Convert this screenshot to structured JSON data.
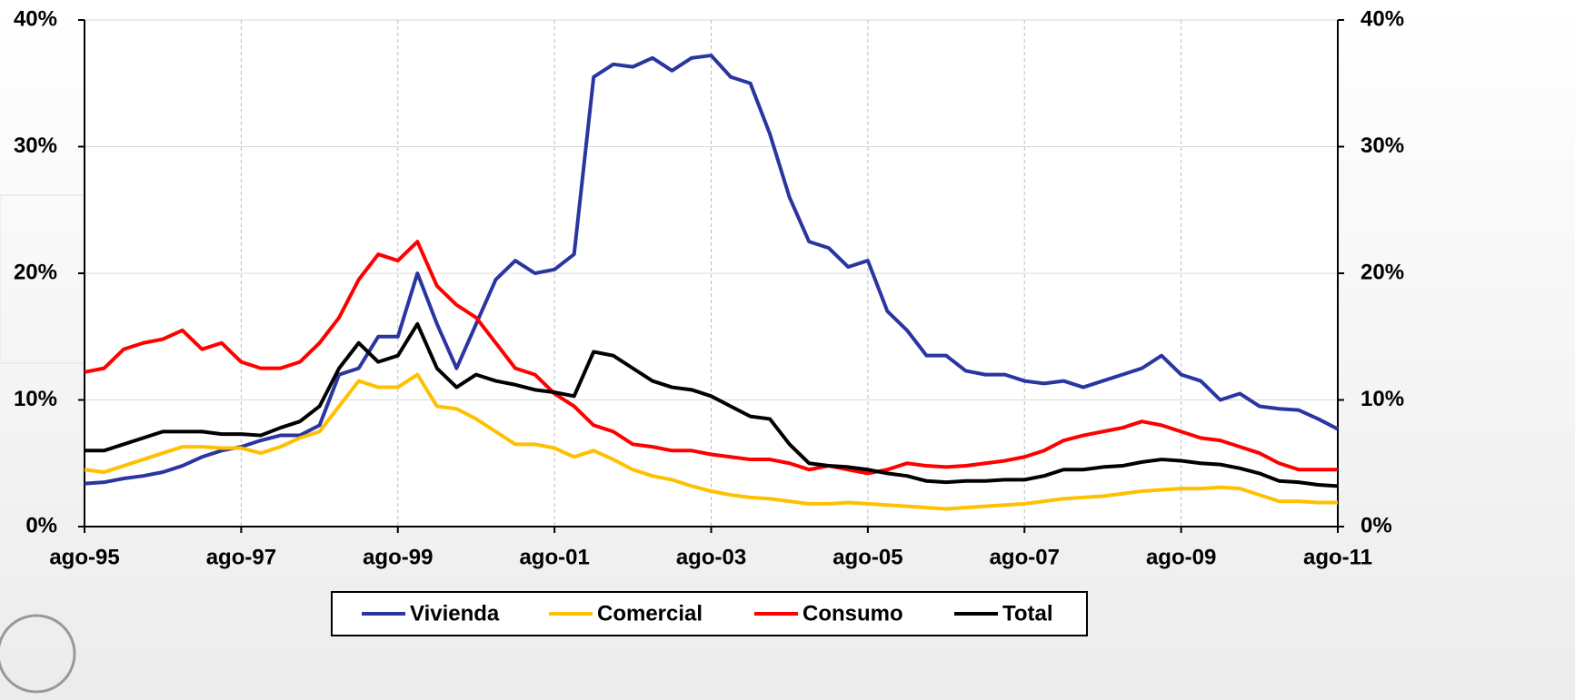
{
  "chart_data": {
    "type": "line",
    "categories": [
      "ago-95",
      null,
      null,
      null,
      null,
      null,
      null,
      null,
      "ago-97",
      null,
      null,
      null,
      null,
      null,
      null,
      null,
      "ago-99",
      null,
      null,
      null,
      null,
      null,
      null,
      null,
      "ago-01",
      null,
      null,
      null,
      null,
      null,
      null,
      null,
      "ago-03",
      null,
      null,
      null,
      null,
      null,
      null,
      null,
      "ago-05",
      null,
      null,
      null,
      null,
      null,
      null,
      null,
      "ago-07",
      null,
      null,
      null,
      null,
      null,
      null,
      null,
      "ago-09",
      null,
      null,
      null,
      null,
      null,
      null,
      null,
      "ago-11"
    ],
    "series": [
      {
        "name": "Vivienda",
        "color": "#2a35a0",
        "values": [
          3.4,
          3.5,
          3.8,
          4.0,
          4.3,
          4.8,
          5.5,
          6.0,
          6.3,
          6.8,
          7.2,
          7.2,
          8.0,
          12.0,
          12.5,
          15.0,
          15.0,
          20.0,
          16.0,
          12.5,
          16.0,
          19.5,
          21.0,
          20.0,
          20.3,
          21.5,
          35.5,
          36.5,
          36.3,
          37.0,
          36.0,
          37.0,
          37.2,
          35.5,
          35.0,
          31.0,
          26.0,
          22.5,
          22.0,
          20.5,
          21.0,
          17.0,
          15.5,
          13.5,
          13.5,
          12.3,
          12.0,
          12.0,
          11.5,
          11.3,
          11.5,
          11.0,
          11.5,
          12.0,
          12.5,
          13.5,
          12.0,
          11.5,
          10.0,
          10.5,
          9.5,
          9.3,
          9.2,
          8.5,
          7.7
        ]
      },
      {
        "name": "Comercial",
        "color": "#ffc000",
        "values": [
          4.5,
          4.3,
          4.8,
          5.3,
          5.8,
          6.3,
          6.3,
          6.2,
          6.2,
          5.8,
          6.3,
          7.0,
          7.5,
          9.5,
          11.5,
          11.0,
          11.0,
          12.0,
          9.5,
          9.3,
          8.5,
          7.5,
          6.5,
          6.5,
          6.2,
          5.5,
          6.0,
          5.3,
          4.5,
          4.0,
          3.7,
          3.2,
          2.8,
          2.5,
          2.3,
          2.2,
          2.0,
          1.8,
          1.8,
          1.9,
          1.8,
          1.7,
          1.6,
          1.5,
          1.4,
          1.5,
          1.6,
          1.7,
          1.8,
          2.0,
          2.2,
          2.3,
          2.4,
          2.6,
          2.8,
          2.9,
          3.0,
          3.0,
          3.1,
          3.0,
          2.5,
          2.0,
          2.0,
          1.9,
          1.9
        ]
      },
      {
        "name": "Consumo",
        "color": "#ff0000",
        "values": [
          12.2,
          12.5,
          14.0,
          14.5,
          14.8,
          15.5,
          14.0,
          14.5,
          13.0,
          12.5,
          12.5,
          13.0,
          14.5,
          16.5,
          19.5,
          21.5,
          21.0,
          22.5,
          19.0,
          17.5,
          16.5,
          14.5,
          12.5,
          12.0,
          10.5,
          9.5,
          8.0,
          7.5,
          6.5,
          6.3,
          6.0,
          6.0,
          5.7,
          5.5,
          5.3,
          5.3,
          5.0,
          4.5,
          4.8,
          4.5,
          4.2,
          4.5,
          5.0,
          4.8,
          4.7,
          4.8,
          5.0,
          5.2,
          5.5,
          6.0,
          6.8,
          7.2,
          7.5,
          7.8,
          8.3,
          8.0,
          7.5,
          7.0,
          6.8,
          6.3,
          5.8,
          5.0,
          4.5,
          4.5,
          4.5
        ]
      },
      {
        "name": "Total",
        "color": "#000000",
        "values": [
          6.0,
          6.0,
          6.5,
          7.0,
          7.5,
          7.5,
          7.5,
          7.3,
          7.3,
          7.2,
          7.8,
          8.3,
          9.5,
          12.5,
          14.5,
          13.0,
          13.5,
          16.0,
          12.5,
          11.0,
          12.0,
          11.5,
          11.2,
          10.8,
          10.6,
          10.3,
          13.8,
          13.5,
          12.5,
          11.5,
          11.0,
          10.8,
          10.3,
          9.5,
          8.7,
          8.5,
          6.5,
          5.0,
          4.8,
          4.7,
          4.5,
          4.2,
          4.0,
          3.6,
          3.5,
          3.6,
          3.6,
          3.7,
          3.7,
          4.0,
          4.5,
          4.5,
          4.7,
          4.8,
          5.1,
          5.3,
          5.2,
          5.0,
          4.9,
          4.6,
          4.2,
          3.6,
          3.5,
          3.3,
          3.2
        ]
      }
    ],
    "ylim": [
      0,
      40
    ],
    "yticks": [
      {
        "value": 0,
        "label": "0%"
      },
      {
        "value": 10,
        "label": "10%"
      },
      {
        "value": 20,
        "label": "20%"
      },
      {
        "value": 30,
        "label": "30%"
      },
      {
        "value": 40,
        "label": "40%"
      }
    ],
    "y2lim": [
      0,
      40
    ],
    "y2ticks": [
      {
        "value": 0,
        "label": "0%"
      },
      {
        "value": 10,
        "label": "10%"
      },
      {
        "value": 20,
        "label": "20%"
      },
      {
        "value": 30,
        "label": "30%"
      },
      {
        "value": 40,
        "label": "40%"
      }
    ],
    "grid": true,
    "legend": "bottom"
  }
}
